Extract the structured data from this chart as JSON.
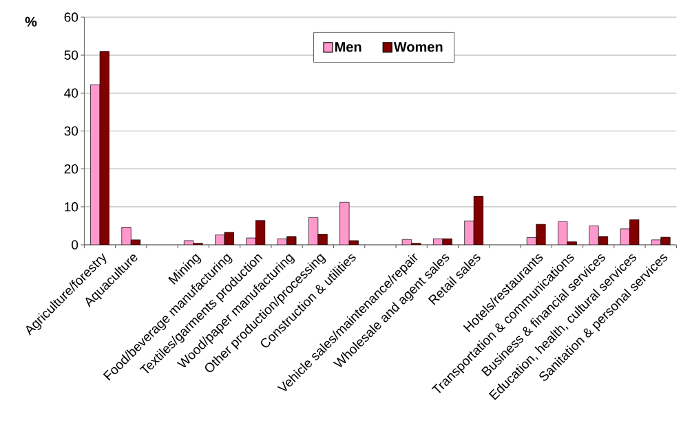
{
  "chart_data": {
    "type": "bar",
    "ylabel": "%",
    "categories": [
      "Agriculture/forestry",
      "Aquaculture",
      null,
      "Mining",
      "Food/beverage manufacturing",
      "Textiles/garments production",
      "Wood/paper manufacturing",
      "Other production/processing",
      "Construction & utilities",
      null,
      "Vehicle sales/maintenance/repair",
      "Wholesale and agent sales",
      "Retail sales",
      null,
      "Hotels/restaurants",
      "Transportation & communications",
      "Business & financial services",
      "Education, health, cultural services",
      "Sanitation & personal services"
    ],
    "series": [
      {
        "name": "Men",
        "color": "#ff99cc",
        "values": [
          42.2,
          4.6,
          null,
          1.1,
          2.6,
          1.8,
          1.6,
          7.2,
          11.2,
          null,
          1.4,
          1.6,
          6.3,
          null,
          1.9,
          6.1,
          5.0,
          4.2,
          1.3
        ]
      },
      {
        "name": "Women",
        "color": "#800000",
        "values": [
          51.0,
          1.3,
          null,
          0.4,
          3.3,
          6.4,
          2.2,
          2.8,
          1.1,
          null,
          0.4,
          1.6,
          12.8,
          null,
          5.4,
          0.8,
          2.2,
          6.6,
          2.0
        ]
      }
    ],
    "ylim": [
      0,
      60
    ],
    "yticks": [
      0,
      10,
      20,
      30,
      40,
      50,
      60
    ],
    "grid": "y",
    "legend": "top"
  }
}
